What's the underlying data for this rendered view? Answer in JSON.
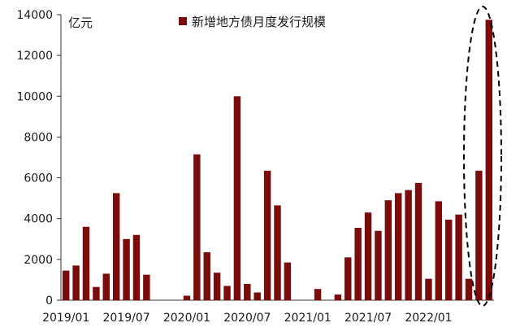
{
  "chart_data": {
    "type": "bar",
    "unit": "亿元",
    "series": [
      {
        "name": "新增地方债月度发行规模",
        "color": "#7b0c0c",
        "values": [
          1450,
          1700,
          3600,
          650,
          1300,
          5250,
          3000,
          3200,
          1250,
          0,
          0,
          0,
          220,
          7150,
          2350,
          1350,
          700,
          10000,
          800,
          380,
          6350,
          4650,
          1850,
          0,
          0,
          550,
          0,
          280,
          2100,
          3550,
          4300,
          3400,
          4900,
          5250,
          5400,
          5750,
          1050,
          4850,
          3950,
          4200,
          1050,
          6350,
          13750
        ]
      }
    ],
    "x_start": "2019/01",
    "x_tick_labels": [
      "2019/01",
      "2019/07",
      "2020/01",
      "2020/07",
      "2021/01",
      "2021/07",
      "2022/01"
    ],
    "ylim": [
      0,
      14000
    ],
    "y_ticks": [
      0,
      2000,
      4000,
      6000,
      8000,
      10000,
      12000,
      14000
    ],
    "legend_position": "top-center",
    "grid": false,
    "annotation": "dashed ellipse around last two bars"
  }
}
